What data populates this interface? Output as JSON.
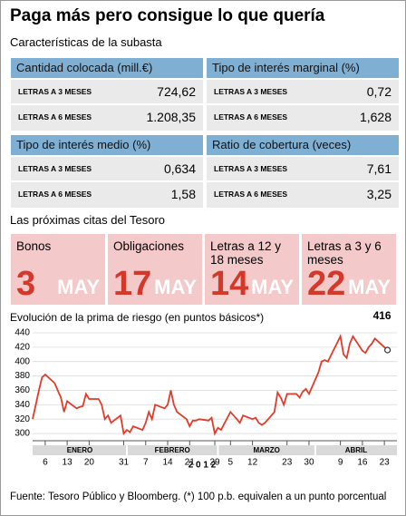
{
  "header": {
    "title": "Paga más pero consigue lo que quería",
    "subtitle": "Características de la subasta"
  },
  "auction": {
    "boxes": [
      {
        "title": "Cantidad colocada (mill.€)",
        "rows": [
          [
            "LETRAS A 3 MESES",
            "724,62"
          ],
          [
            "LETRAS A 6 MESES",
            "1.208,35"
          ]
        ]
      },
      {
        "title": "Tipo de interés marginal (%)",
        "rows": [
          [
            "LETRAS A 3 MESES",
            "0,72"
          ],
          [
            "LETRAS A 6 MESES",
            "1,628"
          ]
        ]
      },
      {
        "title": "Tipo de interés medio (%)",
        "rows": [
          [
            "LETRAS A 3 MESES",
            "0,634"
          ],
          [
            "LETRAS A 6 MESES",
            "1,58"
          ]
        ]
      },
      {
        "title": "Ratio de cobertura (veces)",
        "rows": [
          [
            "LETRAS A 3 MESES",
            "7,61"
          ],
          [
            "LETRAS A 6 MESES",
            "3,25"
          ]
        ]
      }
    ]
  },
  "calendar": {
    "title": "Las próximas citas del Tesoro",
    "items": [
      {
        "label": "Bonos",
        "day": "3",
        "month": "MAY"
      },
      {
        "label": "Obligaciones",
        "day": "17",
        "month": "MAY"
      },
      {
        "label": "Letras a 12 y 18 meses",
        "day": "14",
        "month": "MAY"
      },
      {
        "label": "Letras a 3 y 6 meses",
        "day": "22",
        "month": "MAY"
      }
    ]
  },
  "chart_data": {
    "type": "line",
    "title": "Evolución de la prima de riesgo (en puntos básicos*)",
    "x": [
      "2012-01-02",
      "2012-01-03",
      "2012-01-04",
      "2012-01-05",
      "2012-01-06",
      "2012-01-09",
      "2012-01-10",
      "2012-01-11",
      "2012-01-12",
      "2012-01-13",
      "2012-01-16",
      "2012-01-17",
      "2012-01-18",
      "2012-01-19",
      "2012-01-20",
      "2012-01-23",
      "2012-01-24",
      "2012-01-25",
      "2012-01-26",
      "2012-01-27",
      "2012-01-30",
      "2012-01-31",
      "2012-02-01",
      "2012-02-02",
      "2012-02-03",
      "2012-02-06",
      "2012-02-07",
      "2012-02-08",
      "2012-02-09",
      "2012-02-10",
      "2012-02-13",
      "2012-02-14",
      "2012-02-15",
      "2012-02-16",
      "2012-02-17",
      "2012-02-20",
      "2012-02-21",
      "2012-02-22",
      "2012-02-23",
      "2012-02-24",
      "2012-02-27",
      "2012-02-28",
      "2012-02-29",
      "2012-03-01",
      "2012-03-02",
      "2012-03-05",
      "2012-03-06",
      "2012-03-07",
      "2012-03-08",
      "2012-03-09",
      "2012-03-12",
      "2012-03-13",
      "2012-03-14",
      "2012-03-15",
      "2012-03-16",
      "2012-03-19",
      "2012-03-20",
      "2012-03-21",
      "2012-03-22",
      "2012-03-23",
      "2012-03-26",
      "2012-03-27",
      "2012-03-28",
      "2012-03-29",
      "2012-03-30",
      "2012-04-02",
      "2012-04-03",
      "2012-04-04",
      "2012-04-05",
      "2012-04-09",
      "2012-04-10",
      "2012-04-11",
      "2012-04-12",
      "2012-04-13",
      "2012-04-16",
      "2012-04-17",
      "2012-04-18",
      "2012-04-19",
      "2012-04-20",
      "2012-04-23",
      "2012-04-24"
    ],
    "series": [
      {
        "name": "Prima de riesgo",
        "color": "#e03c2b",
        "values": [
          320,
          340,
          360,
          378,
          382,
          370,
          360,
          350,
          330,
          345,
          335,
          337,
          338,
          355,
          348,
          348,
          340,
          320,
          325,
          315,
          325,
          300,
          305,
          302,
          310,
          305,
          315,
          330,
          320,
          340,
          335,
          340,
          360,
          340,
          330,
          320,
          310,
          318,
          318,
          320,
          318,
          322,
          300,
          308,
          305,
          330,
          325,
          320,
          315,
          325,
          320,
          322,
          315,
          312,
          315,
          330,
          357,
          350,
          340,
          355,
          355,
          350,
          358,
          362,
          355,
          385,
          400,
          402,
          400,
          435,
          410,
          405,
          425,
          435,
          415,
          412,
          420,
          425,
          432,
          420,
          416
        ]
      }
    ],
    "xlim": [
      "2012-01-02",
      "2012-04-27"
    ],
    "xticks": [
      {
        "value": "2012-01-06",
        "label": "6"
      },
      {
        "value": "2012-01-13",
        "label": "13"
      },
      {
        "value": "2012-01-20",
        "label": "20"
      },
      {
        "value": "2012-01-31",
        "label": "31"
      },
      {
        "value": "2012-02-07",
        "label": "7"
      },
      {
        "value": "2012-02-14",
        "label": "14"
      },
      {
        "value": "2012-02-21",
        "label": "21"
      },
      {
        "value": "2012-02-29",
        "label": "29"
      },
      {
        "value": "2012-03-05",
        "label": "5"
      },
      {
        "value": "2012-03-12",
        "label": "12"
      },
      {
        "value": "2012-03-23",
        "label": "23"
      },
      {
        "value": "2012-03-30",
        "label": "30"
      },
      {
        "value": "2012-04-09",
        "label": "9"
      },
      {
        "value": "2012-04-16",
        "label": "16"
      },
      {
        "value": "2012-04-23",
        "label": "23"
      }
    ],
    "months": [
      {
        "value": "2012-01",
        "label": "ENERO"
      },
      {
        "value": "2012-02",
        "label": "FEBRERO"
      },
      {
        "value": "2012-03",
        "label": "MARZO"
      },
      {
        "value": "2012-04",
        "label": "ABRIL"
      }
    ],
    "year": "2 0 1 2",
    "ylim": [
      290,
      445
    ],
    "yticks": [
      300,
      320,
      340,
      360,
      380,
      400,
      420,
      440
    ],
    "grid": true
  },
  "footer": {
    "source": "Fuente: Tesoro Público y Bloomberg. (*) 100 p.b. equivalen a un punto porcentual"
  }
}
